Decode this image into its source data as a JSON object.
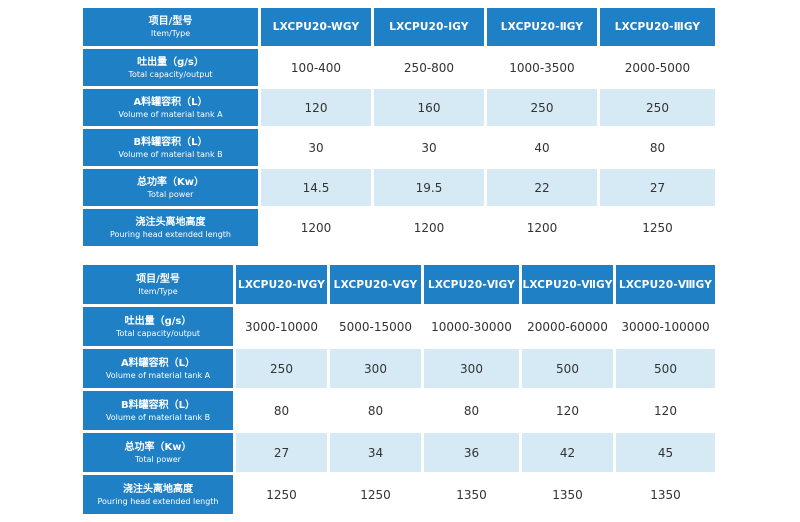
{
  "table1": {
    "header_label_zh": "项目/型号",
    "header_label_en": "Item/Type",
    "models": [
      "LXCPU20-WGY",
      "LXCPU20-ⅠGY",
      "LXCPU20-ⅡGY",
      "LXCPU20-ⅢGY"
    ],
    "rows": [
      {
        "zh": "吐出量（g/s）",
        "en": "Total capacity/output",
        "values": [
          "100-400",
          "250-800",
          "1000-3500",
          "2000-5000"
        ]
      },
      {
        "zh": "A料罐容积（L）",
        "en": "Volume of material tank A",
        "values": [
          "120",
          "160",
          "250",
          "250"
        ]
      },
      {
        "zh": "B料罐容积（L）",
        "en": "Volume of material tank B",
        "values": [
          "30",
          "30",
          "40",
          "80"
        ]
      },
      {
        "zh": "总功率（Kw）",
        "en": "Total power",
        "values": [
          "14.5",
          "19.5",
          "22",
          "27"
        ]
      },
      {
        "zh": "浇注头离地高度",
        "en": "Pouring head extended length",
        "values": [
          "1200",
          "1200",
          "1200",
          "1250"
        ]
      }
    ]
  },
  "table2": {
    "header_label_zh": "项目/型号",
    "header_label_en": "Item/Type",
    "models": [
      "LXCPU20-ⅣGY",
      "LXCPU20-ⅤGY",
      "LXCPU20-ⅥGY",
      "LXCPU20-ⅦGY",
      "LXCPU20-ⅧGY"
    ],
    "rows": [
      {
        "zh": "吐出量（g/s）",
        "en": "Total capacity/output",
        "values": [
          "3000-10000",
          "5000-15000",
          "10000-30000",
          "20000-60000",
          "30000-100000"
        ]
      },
      {
        "zh": "A料罐容积（L）",
        "en": "Volume of material tank A",
        "values": [
          "250",
          "300",
          "300",
          "500",
          "500"
        ]
      },
      {
        "zh": "B料罐容积（L）",
        "en": "Volume of material tank B",
        "values": [
          "80",
          "80",
          "80",
          "120",
          "120"
        ]
      },
      {
        "zh": "总功率（Kw）",
        "en": "Total power",
        "values": [
          "27",
          "34",
          "36",
          "42",
          "45"
        ]
      },
      {
        "zh": "浇注头离地高度",
        "en": "Pouring head extended length",
        "values": [
          "1250",
          "1250",
          "1350",
          "1350",
          "1350"
        ]
      }
    ]
  }
}
